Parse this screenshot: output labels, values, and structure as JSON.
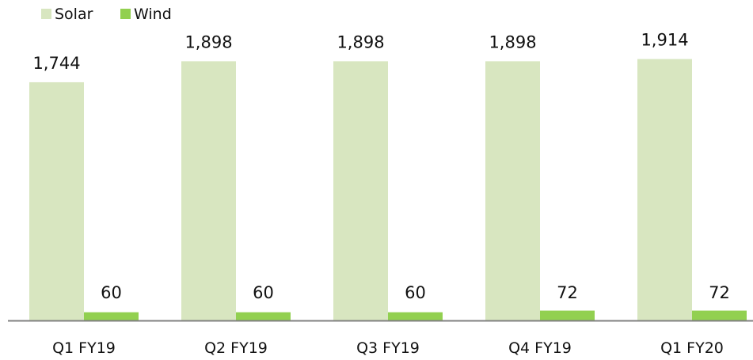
{
  "colors": {
    "solar": "#d8e6c0",
    "wind": "#92d050",
    "axis": "#808080",
    "text": "#111111",
    "background": "#ffffff"
  },
  "chart_data": {
    "type": "bar",
    "title": "",
    "xlabel": "",
    "ylabel": "",
    "categories": [
      "Q1 FY19",
      "Q2 FY19",
      "Q3 FY19",
      "Q4 FY19",
      "Q1 FY20"
    ],
    "series": [
      {
        "name": "Solar",
        "values": [
          1744,
          1898,
          1898,
          1898,
          1914
        ],
        "labels": [
          "1,744",
          "1,898",
          "1,898",
          "1,898",
          "1,914"
        ]
      },
      {
        "name": "Wind",
        "values": [
          60,
          60,
          60,
          72,
          72
        ],
        "labels": [
          "60",
          "60",
          "60",
          "72",
          "72"
        ]
      }
    ],
    "ylim": [
      0,
      2300
    ],
    "grid": false,
    "legend_position": "top-left",
    "data_labels": true
  }
}
